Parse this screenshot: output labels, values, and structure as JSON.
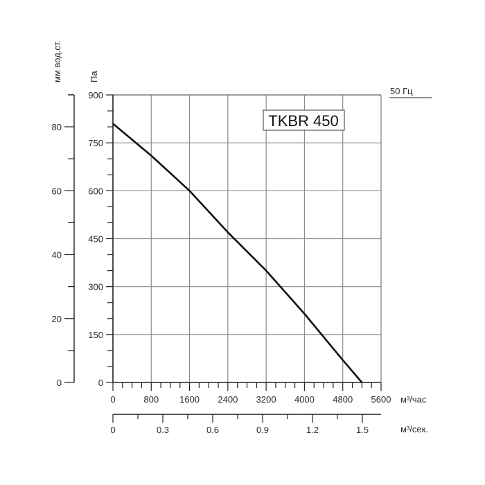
{
  "chart": {
    "model": "TKBR 450",
    "frequency": "50 Гц",
    "left_axis_unit": "мм вод.ст.",
    "pressure_unit": "Па",
    "flow_unit_hour": "м³/час",
    "flow_unit_sec": "м³/сек.",
    "pa_ticks": [
      "900",
      "750",
      "600",
      "450",
      "300",
      "150",
      "0"
    ],
    "mm_ticks": [
      "80",
      "60",
      "40",
      "20",
      "0"
    ],
    "flow_hour_ticks": [
      "0",
      "800",
      "1600",
      "2400",
      "3200",
      "4000",
      "4800",
      "5600"
    ],
    "flow_sec_ticks": [
      "0",
      "0.3",
      "0.6",
      "0.9",
      "1.2",
      "1.5"
    ]
  },
  "chart_data": {
    "type": "line",
    "title": "TKBR 450",
    "subtitle": "50 Гц",
    "xlabel": "м³/час",
    "x2label": "м³/сек.",
    "ylabel": "Па",
    "y2label": "мм вод.ст.",
    "xlim": [
      0,
      5600
    ],
    "ylim": [
      0,
      900
    ],
    "x2lim": [
      0,
      1.5
    ],
    "y2lim": [
      0,
      80
    ],
    "grid": true,
    "x_ticks": [
      0,
      800,
      1600,
      2400,
      3200,
      4000,
      4800,
      5600
    ],
    "y_ticks": [
      0,
      150,
      300,
      450,
      600,
      750,
      900
    ],
    "series": [
      {
        "name": "TKBR 450",
        "x": [
          0,
          800,
          1600,
          2400,
          3200,
          4000,
          4800,
          5200
        ],
        "y": [
          810,
          710,
          600,
          470,
          350,
          215,
          70,
          0
        ]
      }
    ]
  }
}
